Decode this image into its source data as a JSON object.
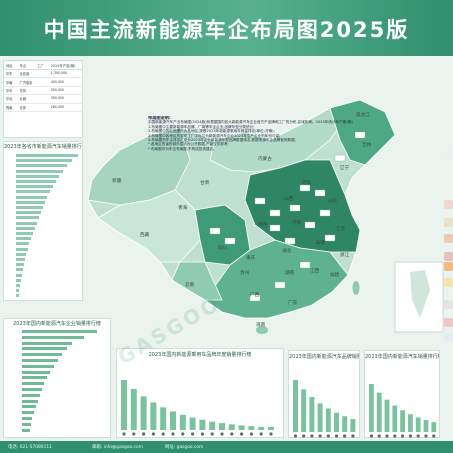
{
  "title": "中国主流新能源车企布局图2025版",
  "legend_heading": "布局图说明:",
  "legend_lines": [
    "中国新能源汽车产业布局图(2024版)系根据国内各大新能源汽车企业官方产品牌和工厂的分布,区域布局。2025年统计年产能(辆)",
    "1.布局图中主要新能源车品牌、厂商等车企企业,品牌车型分类统计;",
    "2.布局图中的红色图形为各地区,按照2023年新能源乘用车销量排名(单位:万辆);",
    "3.布局图中各地区的整车工厂中标注为新能源汽车企业2023年生产企业的年份与量;",
    "4.布局图的车企排名汇总为2023年企业新能源车型品牌数据排名,数据来源车企品牌官网数据;",
    "* 各地区的省份城市显示为公开数据,产能仅供参考;",
    "* 布局图中为车企布局图,不构成投资建议。"
  ],
  "provinces": [
    "新疆",
    "西藏",
    "青海",
    "甘肃",
    "内蒙古",
    "黑龙江",
    "吉林",
    "辽宁",
    "四川",
    "云南",
    "广西",
    "广东",
    "福建",
    "江西",
    "湖南",
    "湖北",
    "河南",
    "山东",
    "江苏",
    "安徽",
    "浙江",
    "贵州",
    "陕西",
    "山西",
    "河北",
    "重庆",
    "海南"
  ],
  "left_table": {
    "headers": [
      "地区",
      "车企",
      "工厂",
      "2024年产能(辆)"
    ],
    "rows": [
      [
        "华东",
        "比亚迪",
        "",
        "1,300,000"
      ],
      [
        "华南",
        "广汽埃安",
        "",
        "400,000"
      ],
      [
        "华中",
        "东风",
        "",
        "350,000"
      ],
      [
        "华北",
        "长城",
        "",
        "300,000"
      ],
      [
        "西南",
        "长安",
        "",
        "280,000"
      ]
    ]
  },
  "rank_chart_1": {
    "title": "2023年各省市新能源汽车销量排行榜"
  },
  "rank_chart_2": {
    "title": "2023年国内新能源汽车企业销量排行榜"
  },
  "mid_chart": {
    "title": "2023年国内新能源乘用车品牌年度销量排行榜"
  },
  "right_chart_1": {
    "title": "2023年国内新能源汽车品牌销量排行榜"
  },
  "right_chart_2": {
    "title": "2023年国内新能源汽车销量排行榜"
  },
  "footer": {
    "phone": "电话: 021-57080111",
    "email": "邮箱: info@gasgoo.com",
    "site": "网址: gasgoo.com"
  },
  "watermark": "GASGOO",
  "colors": {
    "header": "#2f8f6e",
    "map_fill": "#bfe0d0",
    "map_dark": "#3f9a78",
    "bar": "#7bc29f",
    "sea": "#eaf3ee"
  }
}
